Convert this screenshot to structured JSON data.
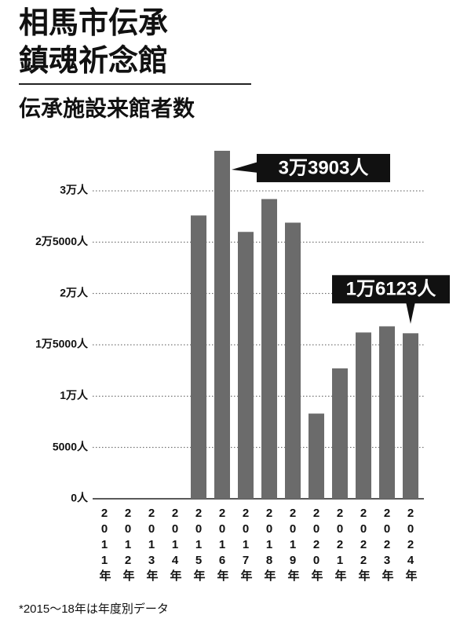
{
  "chart_data": {
    "type": "bar",
    "title_lines": [
      "相馬市伝承",
      "鎮魂祈念館"
    ],
    "subtitle": "伝承施設来館者数",
    "categories": [
      "2011年",
      "2012年",
      "2013年",
      "2014年",
      "2015年",
      "2016年",
      "2017年",
      "2018年",
      "2019年",
      "2020年",
      "2021年",
      "2022年",
      "2023年",
      "2024年"
    ],
    "values": [
      null,
      null,
      null,
      null,
      27600,
      33903,
      26000,
      29200,
      26900,
      8300,
      12700,
      16200,
      16800,
      16123
    ],
    "value_labels": [
      null,
      null,
      null,
      null,
      null,
      "3万3903人",
      null,
      null,
      null,
      null,
      null,
      null,
      null,
      "1万6123人"
    ],
    "color": "#6b6b6b",
    "ylim": [
      0,
      34000
    ],
    "yticks": [
      {
        "value": 0,
        "label": "0人"
      },
      {
        "value": 5000,
        "label": "5000人"
      },
      {
        "value": 10000,
        "label": "1万人"
      },
      {
        "value": 15000,
        "label": "1万5000人"
      },
      {
        "value": 20000,
        "label": "2万人"
      },
      {
        "value": 25000,
        "label": "2万5000人"
      },
      {
        "value": 30000,
        "label": "3万人"
      }
    ],
    "grid": true,
    "note": "*2015〜18年は年度別データ"
  }
}
